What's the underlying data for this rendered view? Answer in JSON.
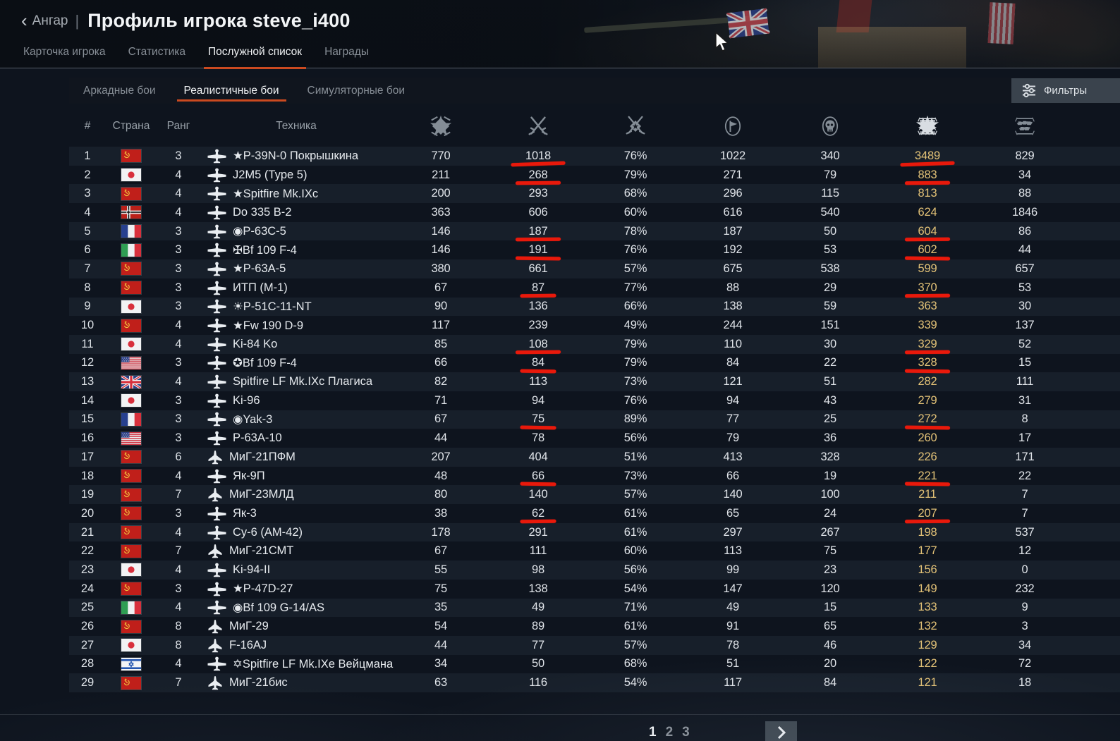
{
  "window": {
    "back_label": "Ангар",
    "title": "Профиль игрока steve_i400"
  },
  "tabs": [
    {
      "label": "Карточка игрока",
      "active": false
    },
    {
      "label": "Статистика",
      "active": false
    },
    {
      "label": "Послужной список",
      "active": true
    },
    {
      "label": "Награды",
      "active": false
    }
  ],
  "subtabs": [
    {
      "label": "Аркадные бои",
      "active": false
    },
    {
      "label": "Реалистичные бои",
      "active": true
    },
    {
      "label": "Симуляторные бои",
      "active": false
    }
  ],
  "filters": {
    "label": "Фильтры",
    "icon": "sliders-icon"
  },
  "table": {
    "text_headers": [
      {
        "key": "num",
        "label": "#"
      },
      {
        "key": "country",
        "label": "Страна"
      },
      {
        "key": "rank",
        "label": "Ранг"
      },
      {
        "key": "vehicle",
        "label": "Техника"
      }
    ],
    "icon_headers": [
      "missions-icon",
      "air-victories-icon",
      "winrate-icon",
      "sorties-icon",
      "deaths-icon",
      "air-kills-scroll-icon",
      "ground-kills-scroll-icon"
    ],
    "sorted_icon": "air-kills-scroll-icon",
    "rows": [
      {
        "num": "1",
        "country": "ussr",
        "rank": "3",
        "vehicle_type": "prop",
        "name": "★P-39N-0 Покрышкина",
        "values": [
          "770",
          "1018",
          "76%",
          "1022",
          "340",
          "3489",
          "829"
        ],
        "marked": true
      },
      {
        "num": "2",
        "country": "japan",
        "rank": "4",
        "vehicle_type": "prop",
        "name": "J2M5 (Type 5)",
        "values": [
          "211",
          "268",
          "79%",
          "271",
          "79",
          "883",
          "34"
        ],
        "marked": true
      },
      {
        "num": "3",
        "country": "ussr",
        "rank": "4",
        "vehicle_type": "prop",
        "name": "★Spitfire Mk.IXc",
        "values": [
          "200",
          "293",
          "68%",
          "296",
          "115",
          "813",
          "88"
        ],
        "marked": false
      },
      {
        "num": "4",
        "country": "germany",
        "rank": "4",
        "vehicle_type": "prop",
        "name": "Do 335 B-2",
        "values": [
          "363",
          "606",
          "60%",
          "616",
          "540",
          "624",
          "1846"
        ],
        "marked": false
      },
      {
        "num": "5",
        "country": "france",
        "rank": "3",
        "vehicle_type": "prop",
        "name": "◉P-63C-5",
        "values": [
          "146",
          "187",
          "78%",
          "187",
          "50",
          "604",
          "86"
        ],
        "marked": true
      },
      {
        "num": "6",
        "country": "italy",
        "rank": "3",
        "vehicle_type": "prop",
        "name": "✠Bf 109 F-4",
        "values": [
          "146",
          "191",
          "76%",
          "192",
          "53",
          "602",
          "44"
        ],
        "marked": true
      },
      {
        "num": "7",
        "country": "ussr",
        "rank": "3",
        "vehicle_type": "prop",
        "name": "★P-63A-5",
        "values": [
          "380",
          "661",
          "57%",
          "675",
          "538",
          "599",
          "657"
        ],
        "marked": false
      },
      {
        "num": "8",
        "country": "ussr",
        "rank": "3",
        "vehicle_type": "prop",
        "name": "ИТП (М-1)",
        "values": [
          "67",
          "87",
          "77%",
          "88",
          "29",
          "370",
          "53"
        ],
        "marked": true
      },
      {
        "num": "9",
        "country": "japan",
        "rank": "3",
        "vehicle_type": "prop",
        "name": "☀P-51C-11-NT",
        "values": [
          "90",
          "136",
          "66%",
          "138",
          "59",
          "363",
          "30"
        ],
        "marked": false
      },
      {
        "num": "10",
        "country": "ussr",
        "rank": "4",
        "vehicle_type": "prop",
        "name": "★Fw 190 D-9",
        "values": [
          "117",
          "239",
          "49%",
          "244",
          "151",
          "339",
          "137"
        ],
        "marked": false
      },
      {
        "num": "11",
        "country": "japan",
        "rank": "4",
        "vehicle_type": "prop",
        "name": "Ki-84 Ko",
        "values": [
          "85",
          "108",
          "79%",
          "110",
          "30",
          "329",
          "52"
        ],
        "marked": true
      },
      {
        "num": "12",
        "country": "usa",
        "rank": "3",
        "vehicle_type": "prop",
        "name": "✪Bf 109 F-4",
        "values": [
          "66",
          "84",
          "79%",
          "84",
          "22",
          "328",
          "15"
        ],
        "marked": true
      },
      {
        "num": "13",
        "country": "uk",
        "rank": "4",
        "vehicle_type": "prop",
        "name": "Spitfire LF Mk.IXc Плагиса",
        "values": [
          "82",
          "113",
          "73%",
          "121",
          "51",
          "282",
          "111"
        ],
        "marked": false
      },
      {
        "num": "14",
        "country": "japan",
        "rank": "3",
        "vehicle_type": "prop",
        "name": "Ki-96",
        "values": [
          "71",
          "94",
          "76%",
          "94",
          "43",
          "279",
          "31"
        ],
        "marked": false
      },
      {
        "num": "15",
        "country": "france",
        "rank": "3",
        "vehicle_type": "prop",
        "name": "◉Yak-3",
        "values": [
          "67",
          "75",
          "89%",
          "77",
          "25",
          "272",
          "8"
        ],
        "marked": true
      },
      {
        "num": "16",
        "country": "usa",
        "rank": "3",
        "vehicle_type": "prop",
        "name": "P-63A-10",
        "values": [
          "44",
          "78",
          "56%",
          "79",
          "36",
          "260",
          "17"
        ],
        "marked": false
      },
      {
        "num": "17",
        "country": "ussr",
        "rank": "6",
        "vehicle_type": "jet",
        "name": "МиГ-21ПФМ",
        "values": [
          "207",
          "404",
          "51%",
          "413",
          "328",
          "226",
          "171"
        ],
        "marked": false
      },
      {
        "num": "18",
        "country": "ussr",
        "rank": "4",
        "vehicle_type": "prop",
        "name": "Як-9П",
        "values": [
          "48",
          "66",
          "73%",
          "66",
          "19",
          "221",
          "22"
        ],
        "marked": true
      },
      {
        "num": "19",
        "country": "ussr",
        "rank": "7",
        "vehicle_type": "jet",
        "name": "МиГ-23МЛД",
        "values": [
          "80",
          "140",
          "57%",
          "140",
          "100",
          "211",
          "7"
        ],
        "marked": false
      },
      {
        "num": "20",
        "country": "ussr",
        "rank": "3",
        "vehicle_type": "prop",
        "name": "Як-3",
        "values": [
          "38",
          "62",
          "61%",
          "65",
          "24",
          "207",
          "7"
        ],
        "marked": true
      },
      {
        "num": "21",
        "country": "ussr",
        "rank": "4",
        "vehicle_type": "prop",
        "name": "Су-6 (АМ-42)",
        "values": [
          "178",
          "291",
          "61%",
          "297",
          "267",
          "198",
          "537"
        ],
        "marked": false
      },
      {
        "num": "22",
        "country": "ussr",
        "rank": "7",
        "vehicle_type": "jet",
        "name": "МиГ-21СМТ",
        "values": [
          "67",
          "111",
          "60%",
          "113",
          "75",
          "177",
          "12"
        ],
        "marked": false
      },
      {
        "num": "23",
        "country": "japan",
        "rank": "4",
        "vehicle_type": "prop",
        "name": "Ki-94-II",
        "values": [
          "55",
          "98",
          "56%",
          "99",
          "23",
          "156",
          "0"
        ],
        "marked": false
      },
      {
        "num": "24",
        "country": "ussr",
        "rank": "3",
        "vehicle_type": "prop",
        "name": "★P-47D-27",
        "values": [
          "75",
          "138",
          "54%",
          "147",
          "120",
          "149",
          "232"
        ],
        "marked": false
      },
      {
        "num": "25",
        "country": "italy",
        "rank": "4",
        "vehicle_type": "prop",
        "name": "◉Bf 109 G-14/AS",
        "values": [
          "35",
          "49",
          "71%",
          "49",
          "15",
          "133",
          "9"
        ],
        "marked": false
      },
      {
        "num": "26",
        "country": "ussr",
        "rank": "8",
        "vehicle_type": "jet",
        "name": "МиГ-29",
        "values": [
          "54",
          "89",
          "61%",
          "91",
          "65",
          "132",
          "3"
        ],
        "marked": false
      },
      {
        "num": "27",
        "country": "japan",
        "rank": "8",
        "vehicle_type": "jet",
        "name": "F-16AJ",
        "values": [
          "44",
          "77",
          "57%",
          "78",
          "46",
          "129",
          "34"
        ],
        "marked": false
      },
      {
        "num": "28",
        "country": "israel",
        "rank": "4",
        "vehicle_type": "prop",
        "name": "✡Spitfire LF Mk.IXe Вейцмана",
        "values": [
          "34",
          "50",
          "68%",
          "51",
          "20",
          "122",
          "72"
        ],
        "marked": false
      },
      {
        "num": "29",
        "country": "ussr",
        "rank": "7",
        "vehicle_type": "jet",
        "name": "МиГ-21бис",
        "values": [
          "63",
          "116",
          "54%",
          "117",
          "84",
          "121",
          "18"
        ],
        "marked": false
      }
    ]
  },
  "pagination": {
    "pages": [
      {
        "label": "1",
        "active": true
      },
      {
        "label": "2",
        "active": false
      },
      {
        "label": "3",
        "active": false
      }
    ],
    "next_label": "next-page"
  },
  "colors": {
    "accent_orange": "#cb4a20",
    "gold": "#e3c277",
    "mark_red": "#e9190b"
  }
}
